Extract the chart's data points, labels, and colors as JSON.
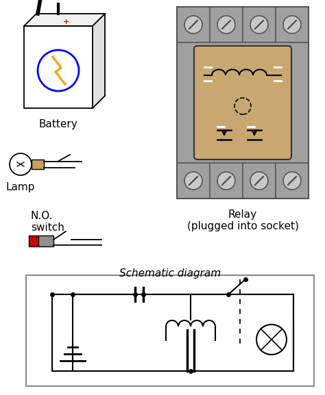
{
  "bg_color": "#ffffff",
  "title_schematic": "Schematic diagram",
  "label_battery": "Battery",
  "label_lamp": "Lamp",
  "label_no_switch": "N.O.\nswitch",
  "label_relay": "Relay\n(plugged into socket)",
  "battery_color": "#f5a623",
  "relay_body_color": "#c8a870",
  "relay_outer_color": "#a0a0a0",
  "switch_red_color": "#cc0000",
  "switch_gray_color": "#909090",
  "lamp_base_color": "#c8a060"
}
